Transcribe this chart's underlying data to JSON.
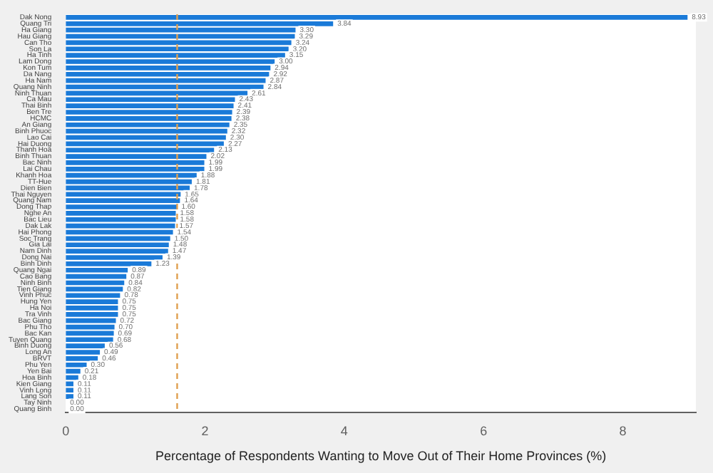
{
  "chart_data": {
    "type": "bar",
    "orientation": "horizontal",
    "xlabel": "Percentage of Respondents Wanting to Move Out of Their Home Provinces (%)",
    "categories": [
      "Dak Nong",
      "Quang Tri",
      "Ha Giang",
      "Hau Giang",
      "Can Tho",
      "Son La",
      "Ha Tinh",
      "Lam Dong",
      "Kon Tum",
      "Da Nang",
      "Ha Nam",
      "Quang Ninh",
      "Ninh Thuan",
      "Ca Mau",
      "Thai Binh",
      "Ben Tre",
      "HCMC",
      "An Giang",
      "Binh Phuoc",
      "Lao Cai",
      "Hai Duong",
      "Thanh Hoa",
      "Binh Thuan",
      "Bac Ninh",
      "Lai Chau",
      "Khanh Hoa",
      "TT-Hue",
      "Dien Bien",
      "Thai Nguyen",
      "Quang Nam",
      "Dong Thap",
      "Nghe An",
      "Bac Lieu",
      "Dak Lak",
      "Hai Phong",
      "Soc Trang",
      "Gia Lai",
      "Nam Dinh",
      "Dong Nai",
      "Binh Dinh",
      "Quang Ngai",
      "Cao Bang",
      "Ninh Binh",
      "Tien Giang",
      "Vinh Phuc",
      "Hung Yen",
      "Ha Noi",
      "Tra Vinh",
      "Bac Giang",
      "Phu Tho",
      "Bac Kan",
      "Tuyen Quang",
      "Binh Duong",
      "Long An",
      "BRVT",
      "Phu Yen",
      "Yen Bai",
      "Hoa Binh",
      "Kien Giang",
      "Vinh Long",
      "Lang Son",
      "Tay Ninh",
      "Quang Binh"
    ],
    "values": [
      8.93,
      3.84,
      3.3,
      3.29,
      3.24,
      3.2,
      3.15,
      3.0,
      2.94,
      2.92,
      2.87,
      2.84,
      2.61,
      2.43,
      2.41,
      2.39,
      2.38,
      2.35,
      2.32,
      2.3,
      2.27,
      2.13,
      2.02,
      1.99,
      1.99,
      1.88,
      1.81,
      1.78,
      1.65,
      1.64,
      1.6,
      1.58,
      1.58,
      1.57,
      1.54,
      1.5,
      1.48,
      1.47,
      1.39,
      1.23,
      0.89,
      0.87,
      0.84,
      0.82,
      0.78,
      0.75,
      0.75,
      0.75,
      0.72,
      0.7,
      0.69,
      0.68,
      0.56,
      0.49,
      0.46,
      0.3,
      0.21,
      0.18,
      0.11,
      0.11,
      0.11,
      0.0,
      0.0
    ],
    "value_labels": [
      "8.93",
      "3.84",
      "3.30",
      "3.29",
      "3.24",
      "3.20",
      "3.15",
      "3.00",
      "2.94",
      "2.92",
      "2.87",
      "2.84",
      "2.61",
      "2.43",
      "2.41",
      "2.39",
      "2.38",
      "2.35",
      "2.32",
      "2.30",
      "2.27",
      "2.13",
      "2.02",
      "1.99",
      "1.99",
      "1.88",
      "1.81",
      "1.78",
      "1.65",
      "1.64",
      "1.60",
      "1.58",
      "1.58",
      "1.57",
      "1.54",
      "1.50",
      "1.48",
      "1.47",
      "1.39",
      "1.23",
      "0.89",
      "0.87",
      "0.84",
      "0.82",
      "0.78",
      "0.75",
      "0.75",
      "0.75",
      "0.72",
      "0.70",
      "0.69",
      "0.68",
      "0.56",
      "0.49",
      "0.46",
      "0.30",
      "0.21",
      "0.18",
      "0.11",
      "0.11",
      "0.11",
      "0.00",
      "0.00"
    ],
    "color": "#1a7ad8",
    "xlim": [
      0,
      9.05
    ],
    "xticks": [
      0,
      2,
      4,
      6,
      8
    ],
    "grid": false,
    "legend": false,
    "ref_lines": [
      {
        "axis": "x",
        "value": 1.6,
        "color": "#e0a050",
        "line_style": "dashed"
      }
    ]
  }
}
